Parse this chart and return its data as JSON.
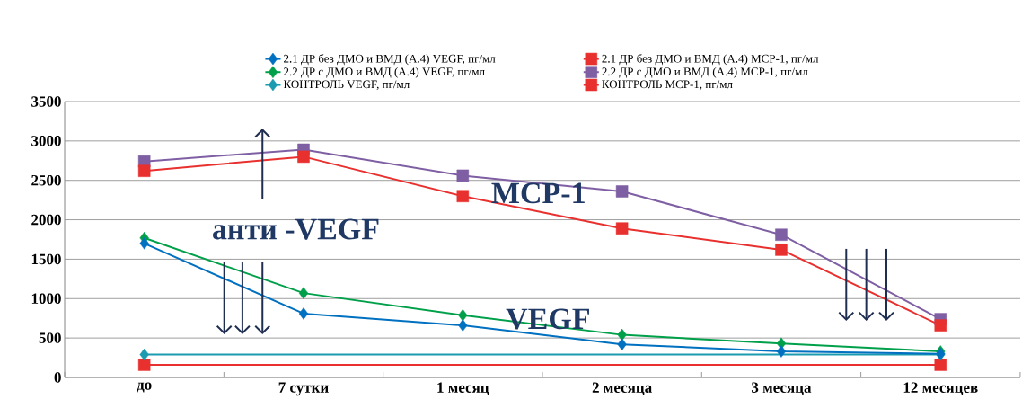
{
  "chart_data": {
    "type": "line",
    "categories": [
      "до",
      "7 сутки",
      "1 месяц",
      "2 месяца",
      "3 месяца",
      "12 месяцев"
    ],
    "series": [
      {
        "name": "2.1 ДР без ДМО и ВМД (А.4) VEGF, пг/мл",
        "color": "#0070c0",
        "marker": "diamond",
        "values": [
          1700,
          810,
          660,
          420,
          330,
          300
        ]
      },
      {
        "name": "2.1 ДР без ДМО и ВМД (А.4) МСР-1, пг/мл",
        "color": "#e8312f",
        "marker": "square",
        "values": [
          2620,
          2800,
          2300,
          1890,
          1620,
          660
        ]
      },
      {
        "name": "2.2 ДР с ДМО и ВМД (А.4) VEGF, пг/мл",
        "color": "#00a04a",
        "marker": "diamond",
        "values": [
          1770,
          1070,
          790,
          540,
          430,
          330
        ]
      },
      {
        "name": "2.2 ДР с ДМО и ВМД (А.4) МСР-1, пг/мл",
        "color": "#7f5fa3",
        "marker": "square",
        "values": [
          2740,
          2890,
          2560,
          2360,
          1810,
          740
        ]
      },
      {
        "name": "КОНТРОЛЬ VEGF, пг/мл",
        "color": "#1a9bb0",
        "marker": "diamond",
        "values": [
          290,
          null,
          null,
          null,
          null,
          290
        ]
      },
      {
        "name": "КОНТРОЛЬ МСР-1, пг/мл",
        "color": "#e8312f",
        "marker": "square",
        "values": [
          160,
          null,
          null,
          null,
          null,
          160
        ]
      }
    ],
    "ylim": [
      0,
      3500
    ],
    "yticks": [
      0,
      500,
      1000,
      1500,
      2000,
      2500,
      3000,
      3500
    ],
    "grid": "y",
    "legend": "top",
    "annotations": [
      "анти -VEGF",
      "MCP-1",
      "VEGF"
    ]
  }
}
